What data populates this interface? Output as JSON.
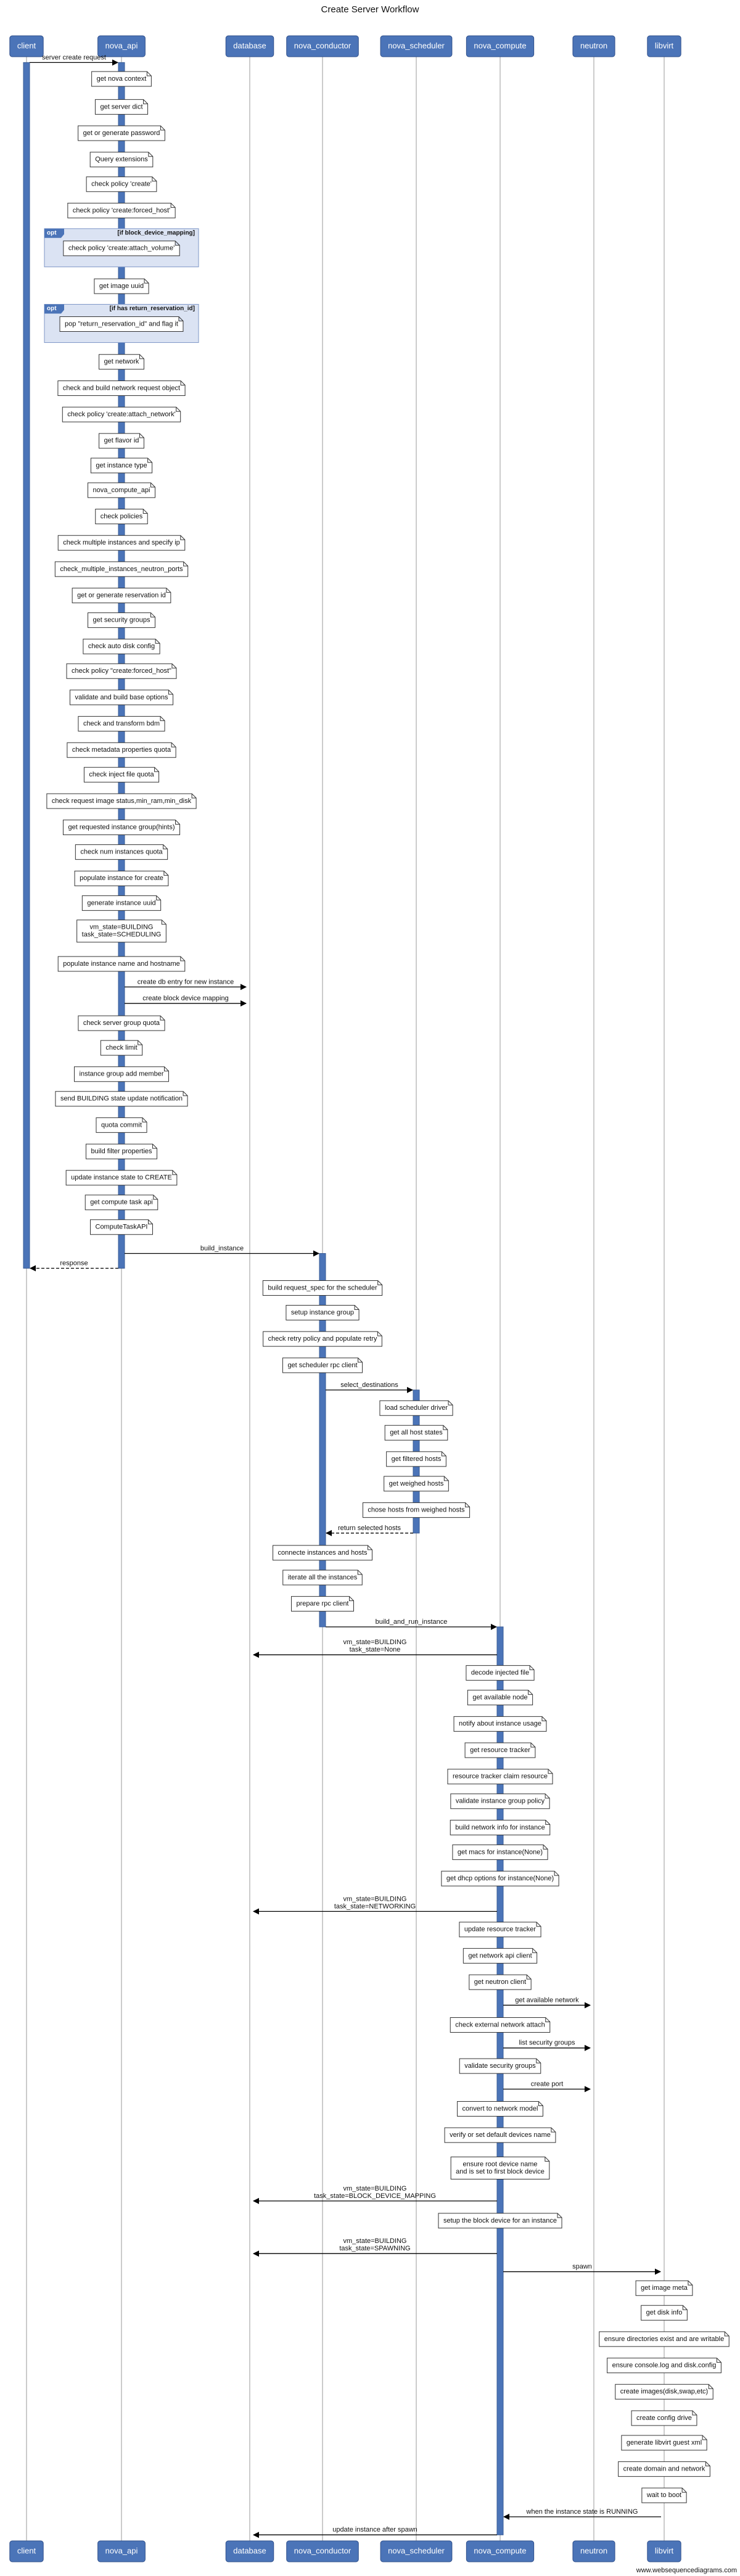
{
  "title": "Create Server Workflow",
  "participants": [
    "client",
    "nova_api",
    "database",
    "nova_conductor",
    "nova_scheduler",
    "nova_compute",
    "neutron",
    "libvirt"
  ],
  "footer": "www.websequencediagrams.com",
  "events": [
    {
      "from": "client",
      "to": "nova_api",
      "text": "server create request"
    },
    {
      "note": "nova_api",
      "text": "get nova context"
    },
    {
      "note": "nova_api",
      "text": "get server dict"
    },
    {
      "note": "nova_api",
      "text": "get or generate password"
    },
    {
      "note": "nova_api",
      "text": "Query extensions"
    },
    {
      "note": "nova_api",
      "text": "check policy 'create'"
    },
    {
      "note": "nova_api",
      "text": "check policy 'create:forced_host'"
    },
    {
      "note": "nova_api",
      "text": "check policy 'create:attach_volume'",
      "opt": "opt",
      "condition": "[if block_device_mapping]"
    },
    {
      "note": "nova_api",
      "text": "get image uuid"
    },
    {
      "note": "nova_api",
      "text": "pop \"return_reservation_id\" and flag it",
      "opt": "opt",
      "condition": "[if has return_reservation_id]"
    },
    {
      "note": "nova_api",
      "text": "get network"
    },
    {
      "note": "nova_api",
      "text": "check and build network request object"
    },
    {
      "note": "nova_api",
      "text": "check policy 'create:attach_network'"
    },
    {
      "note": "nova_api",
      "text": "get flavor id"
    },
    {
      "note": "nova_api",
      "text": "get instance type"
    },
    {
      "note": "nova_api",
      "text": "nova_compute_api"
    },
    {
      "note": "nova_api",
      "text": "check policies"
    },
    {
      "note": "nova_api",
      "text": "check multiple instances and specify ip"
    },
    {
      "note": "nova_api",
      "text": "check_multiple_instances_neutron_ports"
    },
    {
      "note": "nova_api",
      "text": "get or generate reservation id"
    },
    {
      "note": "nova_api",
      "text": "get security groups"
    },
    {
      "note": "nova_api",
      "text": "check auto disk config"
    },
    {
      "note": "nova_api",
      "text": "check policy \"create:forced_host\""
    },
    {
      "note": "nova_api",
      "text": "validate and build base options"
    },
    {
      "note": "nova_api",
      "text": "check and transform bdm"
    },
    {
      "note": "nova_api",
      "text": "check metadata properties quota"
    },
    {
      "note": "nova_api",
      "text": "check inject file quota"
    },
    {
      "note": "nova_api",
      "text": "check request image status,min_ram,min_disk"
    },
    {
      "note": "nova_api",
      "text": "get requested instance group(hints)"
    },
    {
      "note": "nova_api",
      "text": "check num instances quota"
    },
    {
      "note": "nova_api",
      "text": "populate instance for create"
    },
    {
      "note": "nova_api",
      "text": "generate instance uuid"
    },
    {
      "note": "nova_api",
      "text": [
        "vm_state=BUILDING",
        "task_state=SCHEDULING"
      ]
    },
    {
      "note": "nova_api",
      "text": "populate instance name and hostname"
    },
    {
      "from": "nova_api",
      "to": "database",
      "text": "create db entry for new instance"
    },
    {
      "from": "nova_api",
      "to": "database",
      "text": "create block device mapping"
    },
    {
      "note": "nova_api",
      "text": "check server group quota"
    },
    {
      "note": "nova_api",
      "text": "check limit"
    },
    {
      "note": "nova_api",
      "text": "instance group add member"
    },
    {
      "note": "nova_api",
      "text": "send BUILDING state update notification"
    },
    {
      "note": "nova_api",
      "text": "quota commit"
    },
    {
      "note": "nova_api",
      "text": "build filter properties"
    },
    {
      "note": "nova_api",
      "text": "update instance state to CREATE"
    },
    {
      "note": "nova_api",
      "text": "get compute task api"
    },
    {
      "note": "nova_api",
      "text": "ComputeTaskAPI"
    },
    {
      "from": "nova_api",
      "to": "nova_conductor",
      "text": "build_instance"
    },
    {
      "from": "nova_api",
      "to": "client",
      "text": "response",
      "dashed": true
    },
    {
      "note": "nova_conductor",
      "text": "build request_spec for the scheduler"
    },
    {
      "note": "nova_conductor",
      "text": "setup instance group"
    },
    {
      "note": "nova_conductor",
      "text": "check retry policy and populate retry"
    },
    {
      "note": "nova_conductor",
      "text": "get scheduler rpc client"
    },
    {
      "from": "nova_conductor",
      "to": "nova_scheduler",
      "text": "select_destinations"
    },
    {
      "note": "nova_scheduler",
      "text": "load scheduler driver"
    },
    {
      "note": "nova_scheduler",
      "text": "get all host states"
    },
    {
      "note": "nova_scheduler",
      "text": "get filtered hosts"
    },
    {
      "note": "nova_scheduler",
      "text": "get weighed hosts"
    },
    {
      "note": "nova_scheduler",
      "text": "chose hosts from weighed hosts"
    },
    {
      "from": "nova_scheduler",
      "to": "nova_conductor",
      "text": "return selected hosts",
      "dashed": true
    },
    {
      "note": "nova_conductor",
      "text": "connecte instances and hosts"
    },
    {
      "note": "nova_conductor",
      "text": "iterate all the instances"
    },
    {
      "note": "nova_conductor",
      "text": "prepare rpc client"
    },
    {
      "from": "nova_conductor",
      "to": "nova_compute",
      "text": "build_and_run_instance"
    },
    {
      "from": "nova_compute",
      "to": "database",
      "text": [
        "vm_state=BUILDING",
        "task_state=None"
      ]
    },
    {
      "note": "nova_compute",
      "text": "decode injected file"
    },
    {
      "note": "nova_compute",
      "text": "get available node"
    },
    {
      "note": "nova_compute",
      "text": "notify about instance usage"
    },
    {
      "note": "nova_compute",
      "text": "get resource tracker"
    },
    {
      "note": "nova_compute",
      "text": "resource tracker claim resource"
    },
    {
      "note": "nova_compute",
      "text": "validate instance group policy"
    },
    {
      "note": "nova_compute",
      "text": "build network info for instance"
    },
    {
      "note": "nova_compute",
      "text": "get macs for instance(None)"
    },
    {
      "note": "nova_compute",
      "text": "get dhcp options for instance(None)"
    },
    {
      "from": "nova_compute",
      "to": "database",
      "text": [
        "vm_state=BUILDING",
        "task_state=NETWORKING"
      ]
    },
    {
      "note": "nova_compute",
      "text": "update resource tracker"
    },
    {
      "note": "nova_compute",
      "text": "get network api client"
    },
    {
      "note": "nova_compute",
      "text": "get neutron client"
    },
    {
      "from": "nova_compute",
      "to": "neutron",
      "text": "get available network"
    },
    {
      "note": "nova_compute",
      "text": "check external network attach"
    },
    {
      "from": "nova_compute",
      "to": "neutron",
      "text": "list security groups"
    },
    {
      "note": "nova_compute",
      "text": "validate security groups"
    },
    {
      "from": "nova_compute",
      "to": "neutron",
      "text": "create port"
    },
    {
      "note": "nova_compute",
      "text": "convert to network model"
    },
    {
      "note": "nova_compute",
      "text": "verify or set default devices name"
    },
    {
      "note": "nova_compute",
      "text": [
        "ensure root device name",
        " and is set to first block device"
      ]
    },
    {
      "from": "nova_compute",
      "to": "database",
      "text": [
        "vm_state=BUILDING",
        "task_state=BLOCK_DEVICE_MAPPING"
      ]
    },
    {
      "note": "nova_compute",
      "text": "setup the block device for an instance"
    },
    {
      "from": "nova_compute",
      "to": "database",
      "text": [
        "vm_state=BUILDING",
        "task_state=SPAWNING"
      ]
    },
    {
      "from": "nova_compute",
      "to": "libvirt",
      "text": "spawn"
    },
    {
      "note": "libvirt",
      "text": "get image meta"
    },
    {
      "note": "libvirt",
      "text": "get disk info"
    },
    {
      "note": "libvirt",
      "text": "ensure directories exist and are writable"
    },
    {
      "note": "libvirt",
      "text": "ensure console.log and disk.config"
    },
    {
      "note": "libvirt",
      "text": "create images(disk,swap,etc)"
    },
    {
      "note": "libvirt",
      "text": "create config drive"
    },
    {
      "note": "libvirt",
      "text": "generate libvirt guest xml"
    },
    {
      "note": "libvirt",
      "text": "create domain and network"
    },
    {
      "note": "libvirt",
      "text": "wait to boot"
    },
    {
      "from": "libvirt",
      "to": "nova_compute",
      "text": "when the instance state is RUNNING"
    },
    {
      "from": "nova_compute",
      "to": "database",
      "text": "update instance after spawn"
    }
  ]
}
